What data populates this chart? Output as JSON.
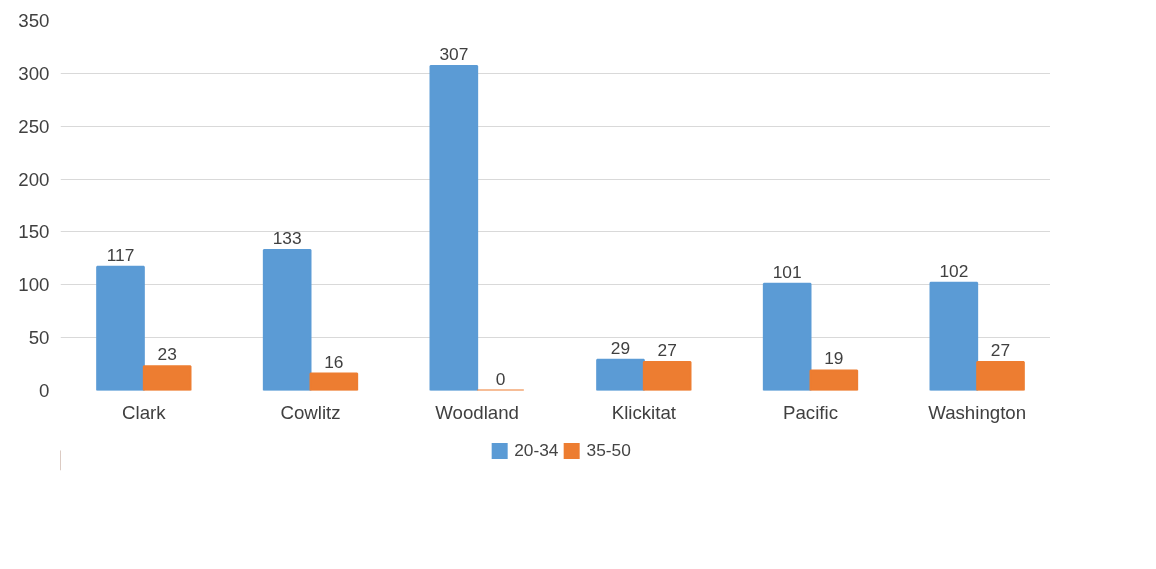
{
  "chart_data": {
    "type": "bar",
    "categories": [
      "Clark",
      "Cowlitz",
      "Woodland",
      "Klickitat",
      "Pacific",
      "Washington"
    ],
    "series": [
      {
        "name": "20-34",
        "color": "#5b9bd5",
        "values": [
          117,
          133,
          307,
          29,
          101,
          102
        ]
      },
      {
        "name": "35-50",
        "color": "#ed7d31",
        "values": [
          23,
          16,
          0,
          27,
          19,
          27
        ]
      }
    ],
    "ylim": [
      0,
      350
    ],
    "yticks": [
      0,
      50,
      100,
      150,
      200,
      250,
      300,
      350
    ],
    "grid": "y",
    "legend": "bottom",
    "data_labels": true
  }
}
